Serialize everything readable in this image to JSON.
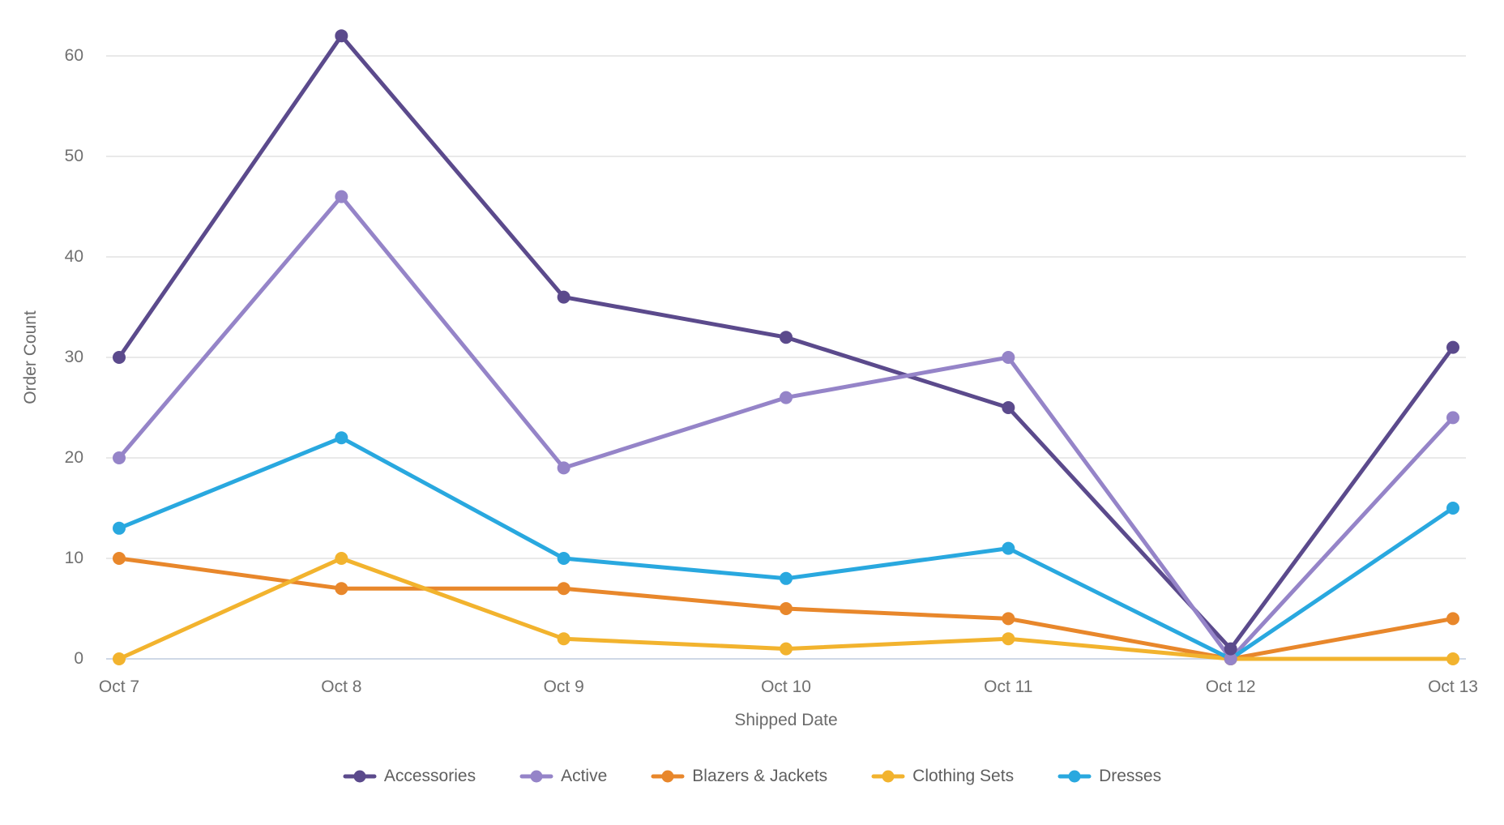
{
  "chart_data": {
    "type": "line",
    "title": "",
    "xlabel": "Shipped Date",
    "ylabel": "Order Count",
    "categories": [
      "Oct 7",
      "Oct 8",
      "Oct 9",
      "Oct 10",
      "Oct 11",
      "Oct 12",
      "Oct 13"
    ],
    "series": [
      {
        "name": "Accessories",
        "color": "#5B4A8C",
        "values": [
          30,
          62,
          36,
          32,
          25,
          1,
          31
        ]
      },
      {
        "name": "Active",
        "color": "#9584C8",
        "values": [
          20,
          46,
          19,
          26,
          30,
          0,
          24
        ]
      },
      {
        "name": "Blazers & Jackets",
        "color": "#E8872B",
        "values": [
          10,
          7,
          7,
          5,
          4,
          0,
          4
        ]
      },
      {
        "name": "Clothing Sets",
        "color": "#F2B32E",
        "values": [
          0,
          10,
          2,
          1,
          2,
          0,
          0
        ]
      },
      {
        "name": "Dresses",
        "color": "#29A8DF",
        "values": [
          13,
          22,
          10,
          8,
          11,
          0,
          15
        ]
      }
    ],
    "y_ticks": [
      0,
      10,
      20,
      30,
      40,
      50,
      60
    ],
    "ylim": [
      0,
      62
    ],
    "grid": true,
    "legend_position": "bottom",
    "marker": "circle",
    "colors": {
      "gridline": "#E9E9E9",
      "zero_line": "#CFD8E6",
      "tick_text": "#707070",
      "axis_title_text": "#6B6B6B",
      "legend_text": "#5F5F5F",
      "background": "#FFFFFF"
    }
  }
}
